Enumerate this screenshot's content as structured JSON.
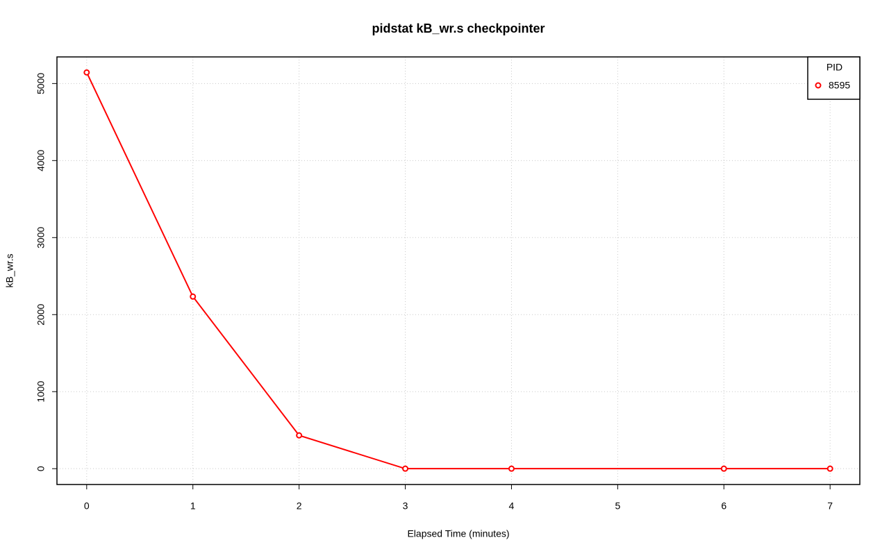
{
  "chart_data": {
    "type": "line",
    "title": "pidstat kB_wr.s checkpointer",
    "x_label": "Elapsed Time (minutes)",
    "y_label": "kB_wr.s",
    "x": [
      0,
      1,
      2,
      3,
      4,
      6,
      7
    ],
    "series": [
      {
        "name": "8595",
        "color": "#ff0000",
        "values": [
          5144,
          2234,
          432,
          0,
          0,
          0,
          0
        ]
      }
    ],
    "xlim": [
      -0.28,
      7.28
    ],
    "xticks": [
      0,
      1,
      2,
      3,
      4,
      5,
      6,
      7
    ],
    "ylim": [
      -205.6,
      5345.6
    ],
    "yticks": [
      0,
      1000,
      2000,
      3000,
      4000,
      5000
    ],
    "grid": true,
    "legend_title": "PID",
    "legend_position": "top-right"
  }
}
